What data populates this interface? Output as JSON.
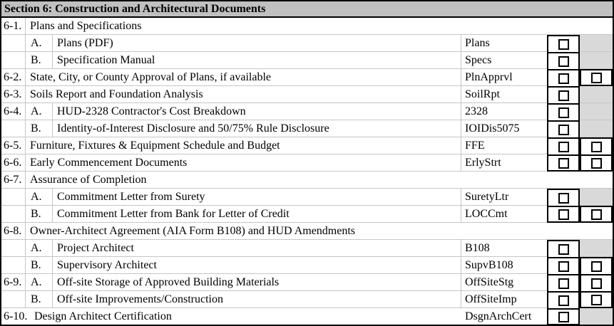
{
  "section_header": {
    "title": "Section 6: Construction and Architectural Documents"
  },
  "colors": {
    "header_bg": "#c0c0c0",
    "blocked_cell_bg": "#d9d9d9",
    "grid_line": "#c6c6c6",
    "border": "#000000"
  },
  "checkbox_state_all": "unchecked",
  "rows": [
    {
      "num": "6-1.",
      "letter": "",
      "desc": "Plans and Specifications",
      "code": "",
      "layout": "heading",
      "col1": "none",
      "col2": "none"
    },
    {
      "num": "",
      "letter": "A.",
      "desc": "Plans (PDF)",
      "code": "Plans",
      "layout": "sub",
      "col1": "checkbox",
      "col2": "blocked"
    },
    {
      "num": "",
      "letter": "B.",
      "desc": "Specification Manual",
      "code": "Specs",
      "layout": "sub",
      "col1": "checkbox",
      "col2": "blocked"
    },
    {
      "num": "6-2.",
      "letter": "",
      "desc": "State, City, or County Approval of Plans, if available",
      "code": "PlnApprvl",
      "layout": "merged",
      "col1": "checkbox",
      "col2": "checkbox"
    },
    {
      "num": "6-3.",
      "letter": "",
      "desc": "Soils Report and Foundation Analysis",
      "code": "SoilRpt",
      "layout": "merged",
      "col1": "checkbox",
      "col2": "blocked"
    },
    {
      "num": "6-4.",
      "letter": "A.",
      "desc": "HUD-2328 Contractor's Cost Breakdown",
      "code": "2328",
      "layout": "sub",
      "col1": "checkbox",
      "col2": "blocked"
    },
    {
      "num": "",
      "letter": "B.",
      "desc": "Identity-of-Interest Disclosure and 50/75% Rule Disclosure",
      "code": "IOIDis5075",
      "layout": "sub",
      "col1": "checkbox",
      "col2": "blocked"
    },
    {
      "num": "6-5.",
      "letter": "",
      "desc": "Furniture, Fixtures & Equipment Schedule and Budget",
      "code": "FFE",
      "layout": "merged",
      "col1": "checkbox",
      "col2": "checkbox"
    },
    {
      "num": "6-6.",
      "letter": "",
      "desc": "Early Commencement Documents",
      "code": "ErlyStrt",
      "layout": "merged",
      "col1": "checkbox",
      "col2": "checkbox"
    },
    {
      "num": "6-7.",
      "letter": "",
      "desc": "Assurance of Completion",
      "code": "",
      "layout": "heading",
      "col1": "none",
      "col2": "none"
    },
    {
      "num": "",
      "letter": "A.",
      "desc": "Commitment Letter from Surety",
      "code": "SuretyLtr",
      "layout": "sub",
      "col1": "checkbox",
      "col2": "blocked"
    },
    {
      "num": "",
      "letter": "B.",
      "desc": "Commitment Letter from Bank for Letter of Credit",
      "code": "LOCCmt",
      "layout": "sub",
      "col1": "checkbox",
      "col2": "checkbox"
    },
    {
      "num": "6-8.",
      "letter": "",
      "desc": "Owner-Architect Agreement (AIA Form B108) and HUD Amendments",
      "code": "",
      "layout": "heading",
      "col1": "none",
      "col2": "none"
    },
    {
      "num": "",
      "letter": "A.",
      "desc": "Project Architect",
      "code": "B108",
      "layout": "sub",
      "col1": "checkbox",
      "col2": "blocked"
    },
    {
      "num": "",
      "letter": "B.",
      "desc": "Supervisory Architect",
      "code": "SupvB108",
      "layout": "sub",
      "col1": "checkbox",
      "col2": "checkbox"
    },
    {
      "num": "6-9.",
      "letter": "A.",
      "desc": "Off-site Storage of Approved Building Materials",
      "code": "OffSiteStg",
      "layout": "sub",
      "col1": "checkbox",
      "col2": "checkbox"
    },
    {
      "num": "",
      "letter": "B.",
      "desc": "Off-site Improvements/Construction",
      "code": "OffSiteImp",
      "layout": "sub",
      "col1": "checkbox",
      "col2": "checkbox"
    },
    {
      "num": "6-10.",
      "letter": "",
      "desc": "Design Architect Certification",
      "code": "DsgnArchCert",
      "layout": "wide",
      "col1": "checkbox",
      "col2": "blocked"
    }
  ]
}
